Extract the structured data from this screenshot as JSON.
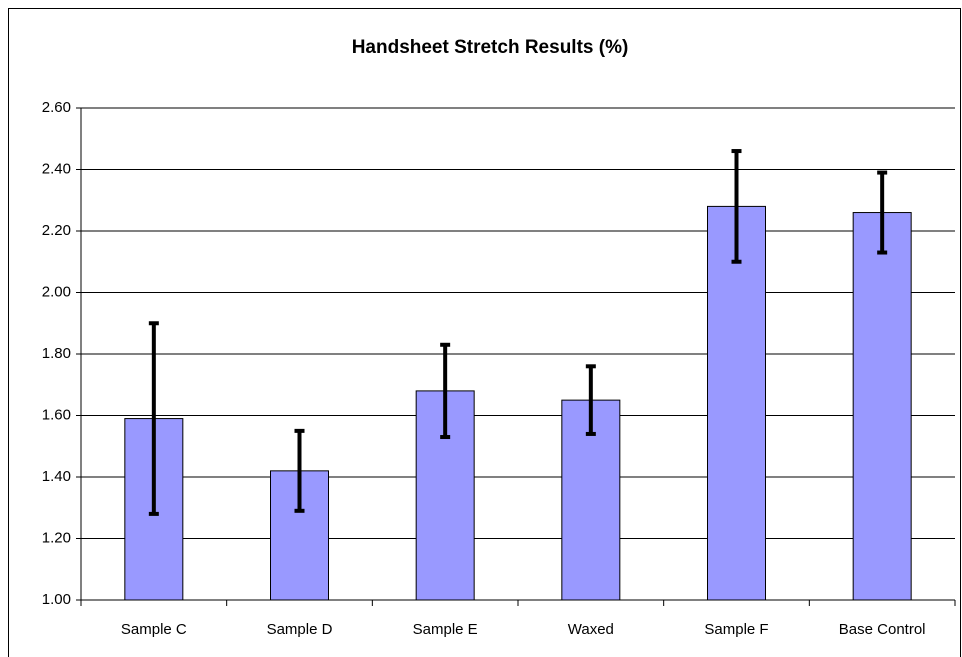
{
  "chart_data": {
    "type": "bar",
    "title": "Handsheet Stretch Results (%)",
    "categories": [
      "Sample C",
      "Sample D",
      "Sample E",
      "Waxed",
      "Sample F",
      "Base Control"
    ],
    "values": [
      1.59,
      1.42,
      1.68,
      1.65,
      2.28,
      2.26
    ],
    "errors": [
      0.31,
      0.13,
      0.15,
      0.11,
      0.18,
      0.13
    ],
    "color": "#9999ff",
    "ylim": [
      1.0,
      2.6
    ],
    "yticks": [
      {
        "value": 1.0,
        "label": "1.00"
      },
      {
        "value": 1.2,
        "label": "1.20"
      },
      {
        "value": 1.4,
        "label": "1.40"
      },
      {
        "value": 1.6,
        "label": "1.60"
      },
      {
        "value": 1.8,
        "label": "1.80"
      },
      {
        "value": 2.0,
        "label": "2.00"
      },
      {
        "value": 2.2,
        "label": "2.20"
      },
      {
        "value": 2.4,
        "label": "2.40"
      },
      {
        "value": 2.6,
        "label": "2.60"
      }
    ],
    "grid": true
  }
}
